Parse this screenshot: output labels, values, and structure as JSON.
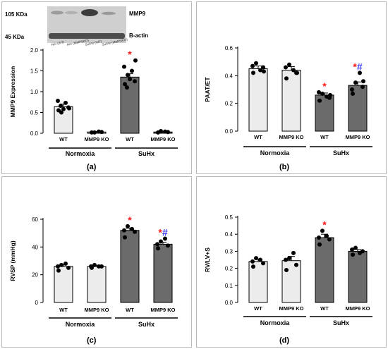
{
  "figure": {
    "panel_labels": [
      "(a)",
      "(b)",
      "(c)",
      "(d)"
    ],
    "colors": {
      "light_bar": "#ececec",
      "dark_bar": "#6b6b6b",
      "star": "#ff1a1a",
      "hash": "#3a3aff",
      "axis": "#000000"
    }
  },
  "blot": {
    "size_top": "105 KDa",
    "size_bottom": "45 KDa",
    "band_top": "MMP9",
    "band_bottom": "B-actin",
    "lane_labels": [
      "Nor (WT)",
      "Nor (MMP9KO)",
      "Su/Hx (WT)",
      "Su/Hx (MMP9KO)"
    ]
  },
  "chart_data": [
    {
      "panel": "(a)",
      "type": "bar",
      "ylabel": "MMP9 Expression",
      "ylim": [
        0,
        2.0
      ],
      "yticks": [
        "0.0",
        "0.5",
        "1.0",
        "1.5",
        "2.0"
      ],
      "ytick_values": [
        0,
        0.5,
        1.0,
        1.5,
        2.0
      ],
      "categories": [
        "WT",
        "MMP9 KO",
        "WT",
        "MMP9 KO"
      ],
      "groups": [
        "Normoxia",
        "SuHx"
      ],
      "values": [
        0.64,
        0.03,
        1.35,
        0.03
      ],
      "errors": [
        0.06,
        0.01,
        0.08,
        0.01
      ],
      "points": [
        [
          0.55,
          0.62,
          0.5,
          0.73,
          0.78,
          0.6,
          0.58,
          0.66
        ],
        [
          0.02,
          0.03,
          0.02,
          0.04
        ],
        [
          1.18,
          1.25,
          1.4,
          1.5,
          1.6,
          1.75,
          1.3,
          1.1
        ],
        [
          0.02,
          0.03,
          0.05,
          0.04
        ]
      ],
      "annotations": [
        "",
        "",
        "*",
        ""
      ]
    },
    {
      "panel": "(b)",
      "type": "bar",
      "ylabel": "PAAT/ET",
      "ylim": [
        0,
        0.6
      ],
      "yticks": [
        "0.0",
        "0.2",
        "0.4",
        "0.6"
      ],
      "ytick_values": [
        0,
        0.2,
        0.4,
        0.6
      ],
      "categories": [
        "WT",
        "MMP9 KO",
        "WT",
        "MMP9 KO"
      ],
      "groups": [
        "Normoxia",
        "SuHx"
      ],
      "values": [
        0.45,
        0.44,
        0.26,
        0.33
      ],
      "errors": [
        0.02,
        0.025,
        0.015,
        0.025
      ],
      "points": [
        [
          0.42,
          0.46,
          0.49,
          0.44,
          0.47,
          0.43
        ],
        [
          0.38,
          0.42,
          0.48,
          0.44,
          0.46,
          0.42
        ],
        [
          0.22,
          0.24,
          0.27,
          0.25,
          0.28,
          0.26
        ],
        [
          0.27,
          0.32,
          0.35,
          0.42,
          0.3,
          0.36
        ]
      ],
      "annotations": [
        "",
        "",
        "*",
        "*#"
      ]
    },
    {
      "panel": "(c)",
      "type": "bar",
      "ylabel": "RVSP (mmHg)",
      "ylim": [
        0,
        60
      ],
      "yticks": [
        "0",
        "20",
        "40",
        "60"
      ],
      "ytick_values": [
        0,
        20,
        40,
        60
      ],
      "categories": [
        "WT",
        "MMP9 KO",
        "WT",
        "MMP9 KO"
      ],
      "groups": [
        "Normoxia",
        "SuHx"
      ],
      "values": [
        26,
        26,
        52,
        42
      ],
      "errors": [
        1.2,
        0.6,
        1.5,
        1.5
      ],
      "points": [
        [
          23,
          25,
          27,
          28,
          26
        ],
        [
          25,
          26,
          27,
          26,
          26
        ],
        [
          47,
          51,
          55,
          53,
          52
        ],
        [
          39,
          41,
          44,
          46,
          42
        ]
      ],
      "annotations": [
        "",
        "",
        "*",
        "*#"
      ]
    },
    {
      "panel": "(d)",
      "type": "bar",
      "ylabel": "RV/LV+S",
      "ylim": [
        0,
        0.5
      ],
      "yticks": [
        "0.0",
        "0.1",
        "0.2",
        "0.3",
        "0.4",
        "0.5"
      ],
      "ytick_values": [
        0,
        0.1,
        0.2,
        0.3,
        0.4,
        0.5
      ],
      "categories": [
        "WT",
        "MMP9 KO",
        "WT",
        "MMP9 KO"
      ],
      "groups": [
        "Normoxia",
        "SuHx"
      ],
      "values": [
        0.24,
        0.245,
        0.38,
        0.3
      ],
      "errors": [
        0.015,
        0.025,
        0.02,
        0.01
      ],
      "points": [
        [
          0.21,
          0.23,
          0.26,
          0.25,
          0.24
        ],
        [
          0.19,
          0.22,
          0.26,
          0.29,
          0.25
        ],
        [
          0.34,
          0.37,
          0.42,
          0.39,
          0.38
        ],
        [
          0.28,
          0.3,
          0.32,
          0.29,
          0.31
        ]
      ],
      "annotations": [
        "",
        "",
        "*",
        ""
      ]
    }
  ]
}
